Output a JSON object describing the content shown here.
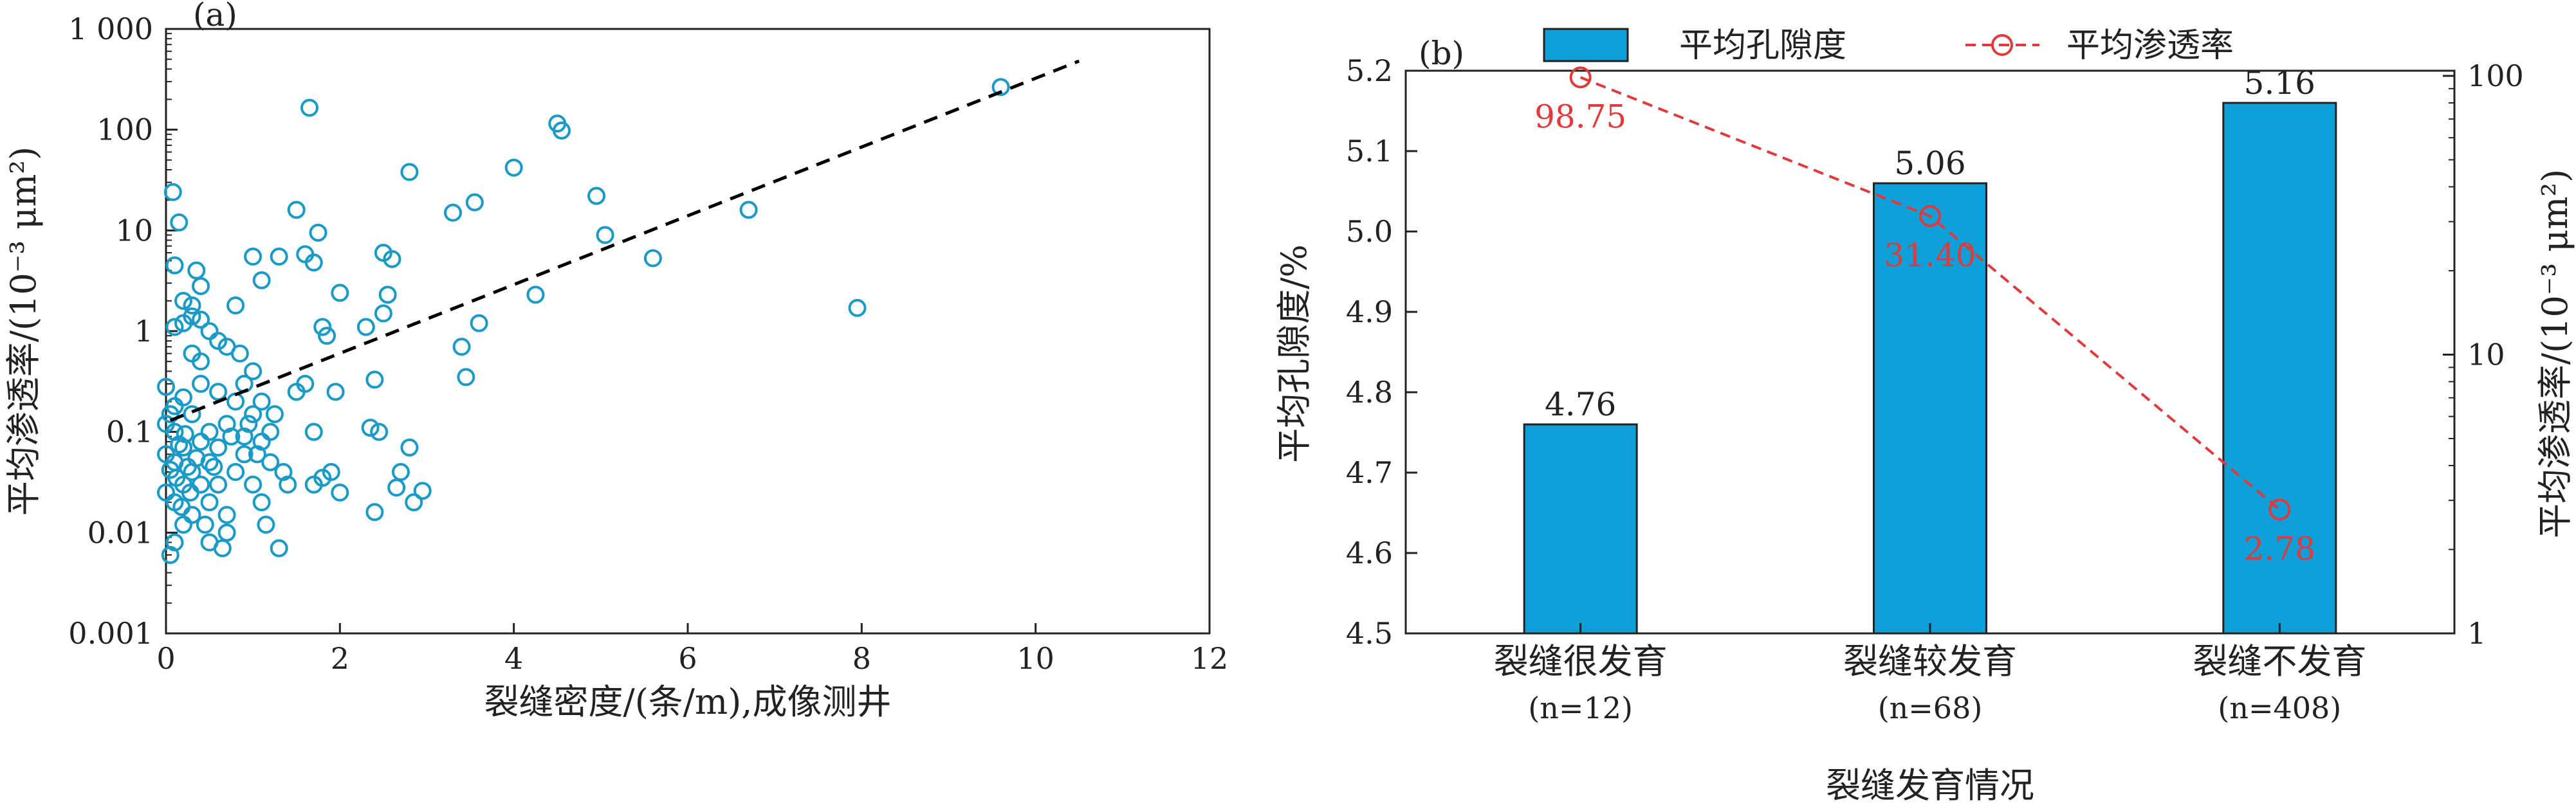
{
  "chart_data": [
    {
      "type": "scatter",
      "panel_label": "(a)",
      "xlabel": "裂缝密度/(条/m),成像测井",
      "ylabel": "平均渗透率/(10⁻³ μm²)",
      "xlim": [
        0,
        12
      ],
      "ylim": [
        0.001,
        1000
      ],
      "y_scale": "log",
      "x_ticks": [
        0,
        2,
        4,
        6,
        8,
        10,
        12
      ],
      "x_tick_labels": [
        "0",
        "2",
        "4",
        "6",
        "8",
        "10",
        "12"
      ],
      "y_ticks": [
        0.001,
        0.01,
        0.1,
        1,
        10,
        100,
        1000
      ],
      "y_tick_labels": [
        "0.001",
        "0.01",
        "0.1",
        "1",
        "10",
        "100",
        "1 000"
      ],
      "marker_color": "#1a9bc7",
      "trend_line": {
        "style": "dashed",
        "color": "#000000",
        "points": [
          [
            0.05,
            0.13
          ],
          [
            10.5,
            480
          ]
        ]
      },
      "points": [
        [
          0.05,
          0.006
        ],
        [
          0.1,
          0.008
        ],
        [
          0.2,
          0.012
        ],
        [
          0.3,
          0.015
        ],
        [
          0.1,
          0.02
        ],
        [
          0.0,
          0.025
        ],
        [
          0.2,
          0.03
        ],
        [
          0.3,
          0.04
        ],
        [
          0.1,
          0.05
        ],
        [
          0.0,
          0.06
        ],
        [
          0.2,
          0.07
        ],
        [
          0.4,
          0.08
        ],
        [
          0.1,
          0.1
        ],
        [
          0.0,
          0.12
        ],
        [
          0.3,
          0.15
        ],
        [
          0.1,
          0.18
        ],
        [
          0.2,
          0.22
        ],
        [
          0.0,
          0.28
        ],
        [
          0.4,
          0.03
        ],
        [
          0.5,
          0.02
        ],
        [
          0.5,
          0.05
        ],
        [
          0.6,
          0.07
        ],
        [
          0.6,
          0.03
        ],
        [
          0.7,
          0.015
        ],
        [
          0.8,
          0.04
        ],
        [
          0.9,
          0.06
        ],
        [
          1.0,
          0.03
        ],
        [
          0.5,
          0.1
        ],
        [
          0.7,
          0.12
        ],
        [
          0.9,
          0.09
        ],
        [
          1.1,
          0.08
        ],
        [
          1.2,
          0.05
        ],
        [
          1.0,
          0.15
        ],
        [
          0.8,
          0.2
        ],
        [
          0.6,
          0.25
        ],
        [
          0.4,
          0.3
        ],
        [
          0.7,
          0.01
        ],
        [
          0.5,
          0.008
        ],
        [
          0.45,
          0.012
        ],
        [
          0.65,
          0.007
        ],
        [
          1.1,
          0.02
        ],
        [
          1.15,
          0.012
        ],
        [
          1.3,
          0.007
        ],
        [
          1.35,
          0.04
        ],
        [
          1.4,
          0.03
        ],
        [
          1.5,
          0.25
        ],
        [
          1.6,
          0.3
        ],
        [
          1.7,
          0.1
        ],
        [
          1.7,
          0.03
        ],
        [
          1.8,
          0.035
        ],
        [
          1.9,
          0.04
        ],
        [
          2.0,
          0.025
        ],
        [
          1.95,
          0.25
        ],
        [
          1.2,
          0.1
        ],
        [
          1.25,
          0.15
        ],
        [
          1.1,
          0.2
        ],
        [
          1.0,
          0.4
        ],
        [
          0.85,
          0.6
        ],
        [
          0.6,
          0.8
        ],
        [
          0.4,
          0.5
        ],
        [
          0.3,
          0.6
        ],
        [
          0.2,
          1.2
        ],
        [
          0.1,
          1.1
        ],
        [
          0.3,
          1.8
        ],
        [
          0.4,
          1.3
        ],
        [
          0.5,
          1.0
        ],
        [
          0.7,
          0.7
        ],
        [
          0.9,
          0.3
        ],
        [
          0.2,
          2.0
        ],
        [
          0.3,
          1.4
        ],
        [
          0.4,
          2.8
        ],
        [
          0.35,
          4.0
        ],
        [
          0.1,
          4.5
        ],
        [
          0.15,
          12
        ],
        [
          0.08,
          24
        ],
        [
          1.0,
          5.5
        ],
        [
          1.1,
          3.2
        ],
        [
          0.8,
          1.8
        ],
        [
          1.3,
          5.5
        ],
        [
          1.5,
          16
        ],
        [
          1.6,
          5.8
        ],
        [
          1.7,
          4.8
        ],
        [
          1.75,
          9.5
        ],
        [
          1.85,
          0.9
        ],
        [
          1.8,
          1.1
        ],
        [
          1.65,
          165
        ],
        [
          2.0,
          2.4
        ],
        [
          2.3,
          1.1
        ],
        [
          2.5,
          1.5
        ],
        [
          2.55,
          2.3
        ],
        [
          2.5,
          6.0
        ],
        [
          2.6,
          5.2
        ],
        [
          2.8,
          38
        ],
        [
          2.8,
          0.07
        ],
        [
          2.7,
          0.04
        ],
        [
          2.85,
          0.02
        ],
        [
          2.95,
          0.026
        ],
        [
          2.45,
          0.1
        ],
        [
          2.35,
          0.11
        ],
        [
          2.4,
          0.33
        ],
        [
          2.4,
          0.016
        ],
        [
          2.65,
          0.028
        ],
        [
          3.3,
          15
        ],
        [
          3.4,
          0.7
        ],
        [
          3.45,
          0.35
        ],
        [
          3.6,
          1.2
        ],
        [
          3.55,
          19
        ],
        [
          4.0,
          42
        ],
        [
          4.25,
          2.3
        ],
        [
          4.5,
          115
        ],
        [
          4.55,
          98
        ],
        [
          4.95,
          22
        ],
        [
          5.05,
          9
        ],
        [
          5.6,
          5.3
        ],
        [
          6.7,
          16
        ],
        [
          7.95,
          1.7
        ],
        [
          9.6,
          265
        ],
        [
          0.05,
          0.15
        ],
        [
          0.12,
          0.035
        ],
        [
          0.25,
          0.045
        ],
        [
          0.35,
          0.055
        ],
        [
          0.55,
          0.045
        ],
        [
          0.75,
          0.09
        ],
        [
          0.95,
          0.12
        ],
        [
          1.05,
          0.06
        ],
        [
          0.15,
          0.075
        ],
        [
          0.22,
          0.095
        ],
        [
          0.05,
          0.042
        ],
        [
          0.18,
          0.018
        ],
        [
          0.28,
          0.025
        ]
      ]
    },
    {
      "type": "bar",
      "panel_label": "(b)",
      "xlabel": "裂缝发育情况",
      "ylabel": "平均孔隙度/%",
      "y2label": "平均渗透率/(10⁻³ μm²)",
      "categories": [
        "裂缝很发育",
        "裂缝较发育",
        "裂缝不发育"
      ],
      "category_counts": [
        "(n=12)",
        "(n=68)",
        "(n=408)"
      ],
      "series": [
        {
          "name": "平均孔隙度",
          "values": [
            4.76,
            5.06,
            5.16
          ],
          "labels": [
            "4.76",
            "5.06",
            "5.16"
          ],
          "color": "#0f9fd8",
          "axis": "left"
        },
        {
          "name": "平均渗透率",
          "values": [
            98.75,
            31.4,
            2.78
          ],
          "labels": [
            "98.75",
            "31.40",
            "2.78"
          ],
          "color": "#e03a3a",
          "axis": "right",
          "style": "dashed-circle"
        }
      ],
      "ylim": [
        4.5,
        5.2
      ],
      "y_ticks": [
        4.5,
        4.6,
        4.7,
        4.8,
        4.9,
        5.0,
        5.1,
        5.2
      ],
      "y_tick_labels": [
        "4.5",
        "4.6",
        "4.7",
        "4.8",
        "4.9",
        "5.0",
        "5.1",
        "5.2"
      ],
      "y2lim": [
        1,
        100
      ],
      "y2_scale": "log",
      "y2_ticks": [
        1,
        10,
        100
      ],
      "y2_tick_labels": [
        "1",
        "10",
        "100"
      ],
      "legend": [
        "平均孔隙度",
        "平均渗透率"
      ],
      "legend_position": "top"
    }
  ]
}
